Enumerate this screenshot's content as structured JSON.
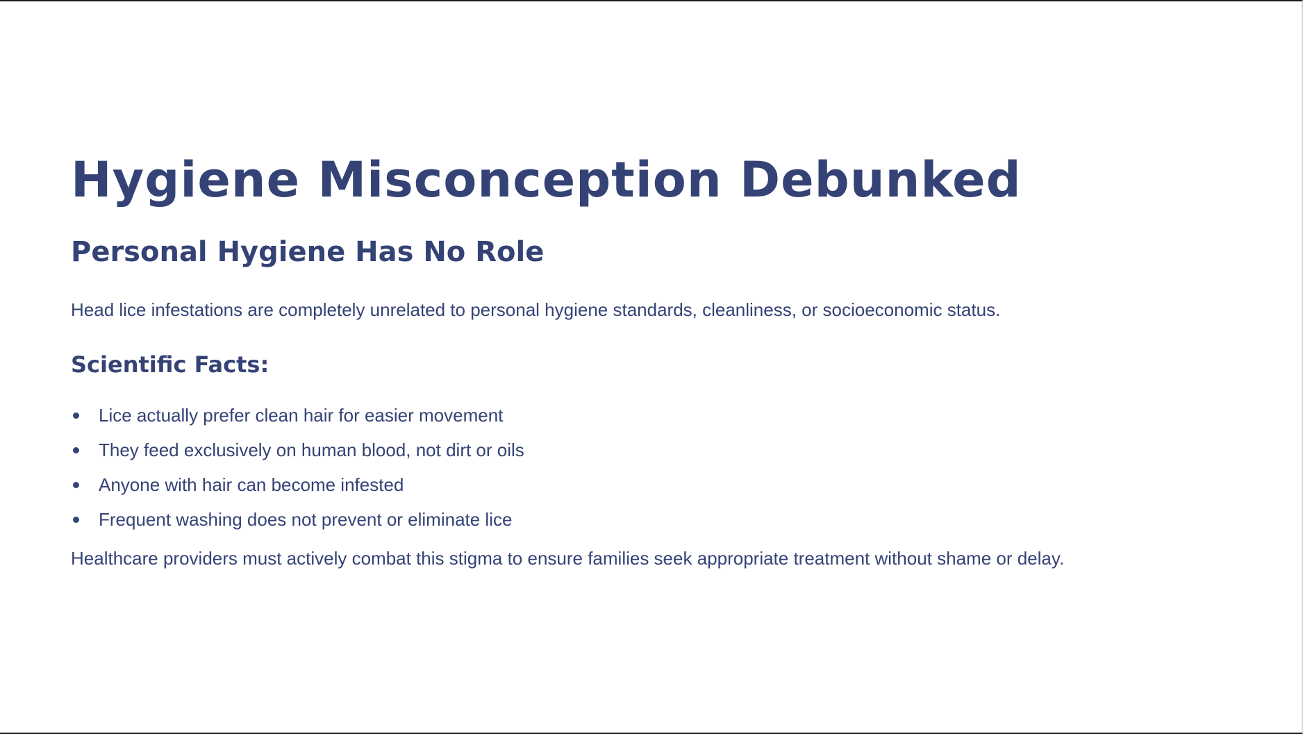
{
  "slide": {
    "title": "Hygiene Misconception Debunked",
    "subtitle": "Personal Hygiene Has No Role",
    "intro": "Head lice infestations are completely unrelated to personal hygiene standards, cleanliness, or socioeconomic status.",
    "facts_heading": "Scientific Facts:",
    "facts": [
      "Lice actually prefer clean hair for easier movement",
      "They feed exclusively on human blood, not dirt or oils",
      "Anyone with hair can become infested",
      "Frequent washing does not prevent or eliminate lice"
    ],
    "closing": "Healthcare providers must actively combat this stigma to ensure families seek appropriate treatment without shame or delay."
  },
  "colors": {
    "text": "#344275",
    "background": "#ffffff"
  }
}
